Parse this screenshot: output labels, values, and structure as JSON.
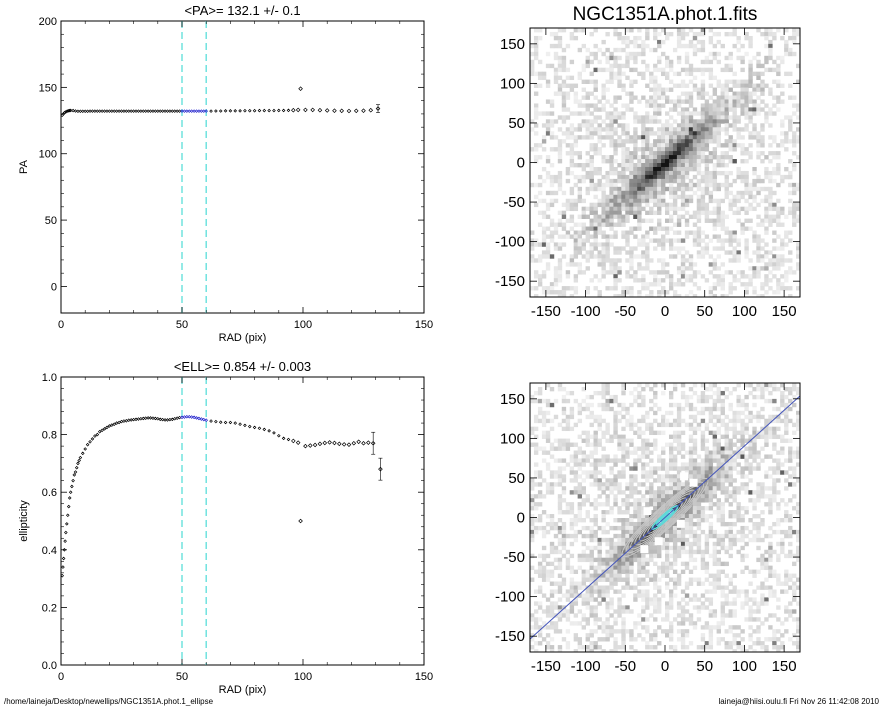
{
  "footer": {
    "path": "/home/laineja/Desktop/newellips/NGC1351A.phot.1_ellipse",
    "user_info": "laineja@hiisi.oulu.fi  Fri Nov 26 11:42:08 2010"
  },
  "chart_data": [
    {
      "type": "scatter",
      "title": "<PA>= 132.1 +/-   0.1",
      "xlabel": "RAD (pix)",
      "ylabel": "PA",
      "xlim": [
        0,
        150
      ],
      "ylim": [
        -20,
        200
      ],
      "xticks": [
        0,
        50,
        100,
        150
      ],
      "yticks": [
        0,
        50,
        100,
        150,
        200
      ],
      "vlines": [
        50,
        60
      ],
      "highlight_range": [
        50,
        60
      ],
      "colors": {
        "points": "#000000",
        "highlight": "#2222cc",
        "vlines": "#66e0dc"
      },
      "series": [
        {
          "values": [
            [
              0.5,
              129
            ],
            [
              1,
              130
            ],
            [
              1.5,
              131
            ],
            [
              2,
              131.5
            ],
            [
              2.5,
              132
            ],
            [
              3,
              132.3
            ],
            [
              3.5,
              132.5
            ],
            [
              4,
              132.6
            ],
            [
              5,
              132.5
            ],
            [
              6,
              132.2
            ],
            [
              7,
              132
            ],
            [
              8,
              132
            ],
            [
              9,
              132
            ],
            [
              10,
              132
            ],
            [
              11,
              132
            ],
            [
              12,
              132.1
            ],
            [
              13,
              132.1
            ],
            [
              14,
              132.1
            ],
            [
              15,
              132.1
            ],
            [
              16,
              132.1
            ],
            [
              17,
              132.1
            ],
            [
              18,
              132.1
            ],
            [
              19,
              132.1
            ],
            [
              20,
              132.1
            ],
            [
              21,
              132.1
            ],
            [
              22,
              132.1
            ],
            [
              23,
              132.1
            ],
            [
              24,
              132.1
            ],
            [
              25,
              132.1
            ],
            [
              26,
              132.1
            ],
            [
              27,
              132.1
            ],
            [
              28,
              132.1
            ],
            [
              29,
              132.1
            ],
            [
              30,
              132.1
            ],
            [
              31,
              132.1
            ],
            [
              32,
              132.1
            ],
            [
              33,
              132.1
            ],
            [
              34,
              132.1
            ],
            [
              35,
              132.1
            ],
            [
              36,
              132.1
            ],
            [
              37,
              132.1
            ],
            [
              38,
              132.1
            ],
            [
              39,
              132.1
            ],
            [
              40,
              132.1
            ],
            [
              41,
              132.1
            ],
            [
              42,
              132.1
            ],
            [
              43,
              132.1
            ],
            [
              44,
              132.1
            ],
            [
              45,
              132.1
            ],
            [
              46,
              132.1
            ],
            [
              47,
              132.1
            ],
            [
              48,
              132.1
            ],
            [
              49,
              132.1
            ],
            [
              50,
              132.1
            ],
            [
              51,
              132.1
            ],
            [
              52,
              132.1
            ],
            [
              53,
              132.1
            ],
            [
              54,
              132.1
            ],
            [
              55,
              132.1
            ],
            [
              56,
              132.1
            ],
            [
              57,
              132.1
            ],
            [
              58,
              132.1
            ],
            [
              59,
              132.1
            ],
            [
              60,
              132.1
            ],
            [
              62,
              132.1
            ],
            [
              64,
              132.2
            ],
            [
              66,
              132.2
            ],
            [
              68,
              132.3
            ],
            [
              70,
              132.3
            ],
            [
              72,
              132.3
            ],
            [
              74,
              132.3
            ],
            [
              76,
              132.4
            ],
            [
              78,
              132.4
            ],
            [
              80,
              132.4
            ],
            [
              82,
              132.5
            ],
            [
              84,
              132.5
            ],
            [
              86,
              132.5
            ],
            [
              88,
              132.5
            ],
            [
              90,
              132.6
            ],
            [
              92,
              132.6
            ],
            [
              94,
              132.7
            ],
            [
              96,
              132.8
            ],
            [
              98,
              133
            ],
            [
              99,
              149
            ],
            [
              101,
              133
            ],
            [
              104,
              133
            ],
            [
              107,
              132.8
            ],
            [
              110,
              132.6
            ],
            [
              113,
              132.4
            ],
            [
              116,
              132.3
            ],
            [
              119,
              132.2
            ],
            [
              122,
              132.3
            ],
            [
              125,
              132.4
            ],
            [
              128,
              132.8
            ],
            [
              131,
              134
            ]
          ]
        }
      ]
    },
    {
      "type": "scatter",
      "title": "<ELL>= 0.854 +/-  0.003",
      "xlabel": "RAD (pix)",
      "ylabel": "ellipticity",
      "xlim": [
        0,
        150
      ],
      "ylim": [
        0,
        1
      ],
      "xticks": [
        0,
        50,
        100,
        150
      ],
      "yticks": [
        0.0,
        0.2,
        0.4,
        0.6,
        0.8,
        1.0
      ],
      "vlines": [
        50,
        60
      ],
      "highlight_range": [
        50,
        60
      ],
      "colors": {
        "points": "#000000",
        "highlight": "#2222cc",
        "vlines": "#66e0dc"
      },
      "series": [
        {
          "values": [
            [
              0.5,
              0.31
            ],
            [
              0.8,
              0.34
            ],
            [
              1.1,
              0.37
            ],
            [
              1.4,
              0.4
            ],
            [
              1.7,
              0.43
            ],
            [
              2,
              0.46
            ],
            [
              2.4,
              0.49
            ],
            [
              2.8,
              0.52
            ],
            [
              3.2,
              0.55
            ],
            [
              3.6,
              0.58
            ],
            [
              4,
              0.6
            ],
            [
              4.5,
              0.62
            ],
            [
              5,
              0.64
            ],
            [
              5.5,
              0.66
            ],
            [
              6,
              0.67
            ],
            [
              6.5,
              0.685
            ],
            [
              7,
              0.7
            ],
            [
              7.5,
              0.71
            ],
            [
              8,
              0.72
            ],
            [
              9,
              0.735
            ],
            [
              10,
              0.75
            ],
            [
              11,
              0.765
            ],
            [
              12,
              0.775
            ],
            [
              13,
              0.785
            ],
            [
              14,
              0.795
            ],
            [
              15,
              0.8
            ],
            [
              16,
              0.81
            ],
            [
              17,
              0.815
            ],
            [
              18,
              0.82
            ],
            [
              19,
              0.825
            ],
            [
              20,
              0.83
            ],
            [
              21,
              0.833
            ],
            [
              22,
              0.836
            ],
            [
              23,
              0.84
            ],
            [
              24,
              0.842
            ],
            [
              25,
              0.845
            ],
            [
              26,
              0.847
            ],
            [
              27,
              0.848
            ],
            [
              28,
              0.85
            ],
            [
              29,
              0.851
            ],
            [
              30,
              0.852
            ],
            [
              31,
              0.853
            ],
            [
              32,
              0.854
            ],
            [
              33,
              0.855
            ],
            [
              34,
              0.856
            ],
            [
              35,
              0.857
            ],
            [
              36,
              0.858
            ],
            [
              37,
              0.858
            ],
            [
              38,
              0.857
            ],
            [
              39,
              0.856
            ],
            [
              40,
              0.855
            ],
            [
              41,
              0.853
            ],
            [
              42,
              0.852
            ],
            [
              43,
              0.851
            ],
            [
              44,
              0.851
            ],
            [
              45,
              0.852
            ],
            [
              46,
              0.853
            ],
            [
              47,
              0.855
            ],
            [
              48,
              0.857
            ],
            [
              49,
              0.859
            ],
            [
              50,
              0.86
            ],
            [
              51,
              0.861
            ],
            [
              52,
              0.862
            ],
            [
              53,
              0.862
            ],
            [
              54,
              0.861
            ],
            [
              55,
              0.86
            ],
            [
              56,
              0.858
            ],
            [
              57,
              0.856
            ],
            [
              58,
              0.854
            ],
            [
              59,
              0.852
            ],
            [
              60,
              0.85
            ],
            [
              62,
              0.847
            ],
            [
              64,
              0.845
            ],
            [
              66,
              0.843
            ],
            [
              68,
              0.842
            ],
            [
              70,
              0.842
            ],
            [
              72,
              0.84
            ],
            [
              74,
              0.836
            ],
            [
              76,
              0.832
            ],
            [
              78,
              0.828
            ],
            [
              80,
              0.825
            ],
            [
              82,
              0.822
            ],
            [
              84,
              0.818
            ],
            [
              86,
              0.813
            ],
            [
              88,
              0.806
            ],
            [
              90,
              0.796
            ],
            [
              92,
              0.787
            ],
            [
              94,
              0.783
            ],
            [
              96,
              0.778
            ],
            [
              98,
              0.772
            ],
            [
              99,
              0.5
            ],
            [
              101,
              0.76
            ],
            [
              103,
              0.762
            ],
            [
              105,
              0.764
            ],
            [
              107,
              0.768
            ],
            [
              109,
              0.771
            ],
            [
              111,
              0.773
            ],
            [
              113,
              0.771
            ],
            [
              115,
              0.768
            ],
            [
              117,
              0.766
            ],
            [
              119,
              0.765
            ],
            [
              121,
              0.77
            ],
            [
              123,
              0.775
            ],
            [
              125,
              0.77
            ],
            [
              127,
              0.772
            ],
            [
              129,
              0.77
            ],
            [
              132,
              0.68
            ]
          ]
        }
      ]
    },
    {
      "type": "heatmap",
      "title": "NGC1351A.phot.1.fits",
      "xlim": [
        -170,
        170
      ],
      "ylim": [
        -170,
        170
      ],
      "xticks": [
        -150,
        -100,
        -50,
        0,
        50,
        100,
        150
      ],
      "yticks": [
        -150,
        -100,
        -50,
        0,
        50,
        100,
        150
      ],
      "position_angle_deg": 132.1,
      "ellipticity": 0.854
    },
    {
      "type": "heatmap",
      "title": "",
      "xlim": [
        -170,
        170
      ],
      "ylim": [
        -170,
        170
      ],
      "xticks": [
        -150,
        -100,
        -50,
        0,
        50,
        100,
        150
      ],
      "yticks": [
        -150,
        -100,
        -50,
        0,
        50,
        100,
        150
      ],
      "position_angle_deg": 132.1,
      "ellipticity": 0.854,
      "isophote_count": 10,
      "colors": {
        "contours": "#c8c8c8",
        "major_axis_line": "#4455bb",
        "inner_isophotes": "#60d8d8"
      }
    }
  ]
}
